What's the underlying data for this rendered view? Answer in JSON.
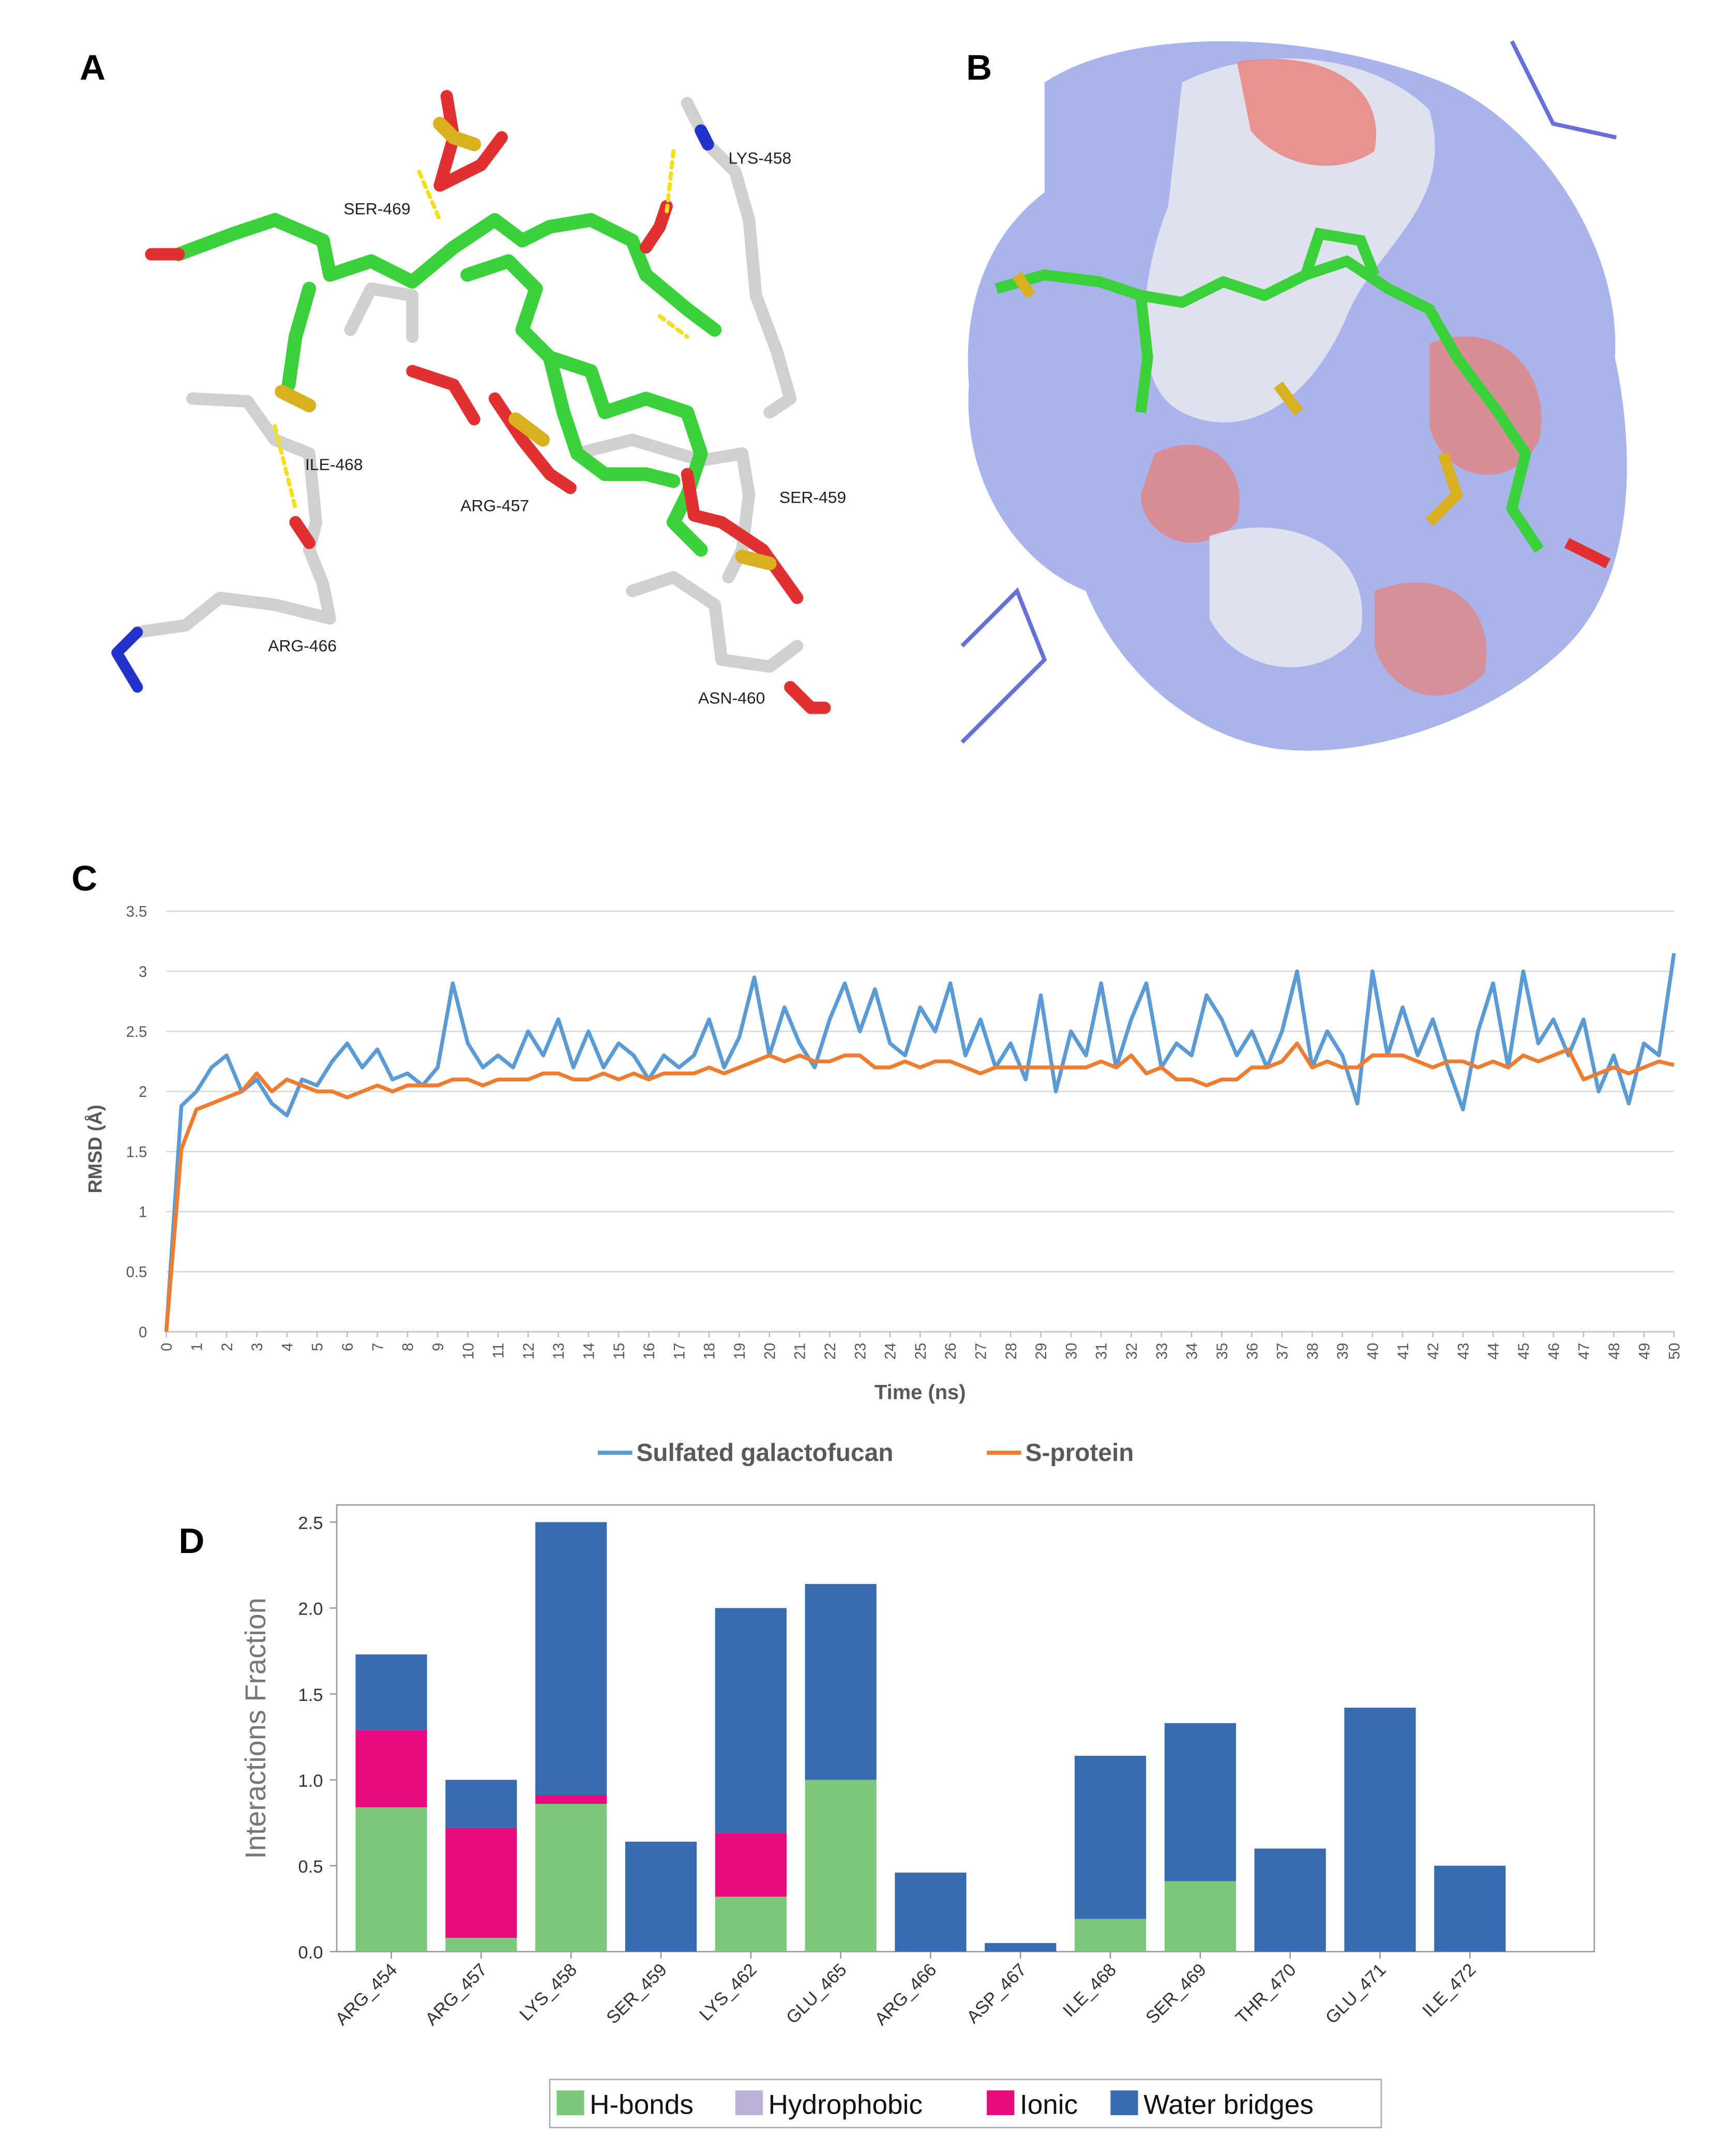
{
  "panel_labels": [
    "A",
    "B",
    "C",
    "D"
  ],
  "structure_labels": [
    "LYS-458",
    "SER-469",
    "ILE-468",
    "ARG-457",
    "SER-459",
    "ARG-466",
    "ASN-460"
  ],
  "chart_data": [
    {
      "type": "line",
      "ylabel": "RMSD (Å)",
      "xlabel": "Time (ns)",
      "xlim": [
        0,
        50
      ],
      "ylim": [
        0,
        3.5
      ],
      "xticks": [
        0,
        1,
        2,
        3,
        4,
        5,
        6,
        7,
        8,
        9,
        10,
        11,
        12,
        13,
        14,
        15,
        16,
        17,
        18,
        19,
        20,
        21,
        22,
        23,
        24,
        25,
        26,
        27,
        28,
        29,
        30,
        31,
        32,
        33,
        34,
        35,
        36,
        37,
        38,
        39,
        40,
        41,
        42,
        43,
        44,
        45,
        46,
        47,
        48,
        49,
        50
      ],
      "yticks": [
        0,
        0.5,
        1,
        1.5,
        2,
        2.5,
        3,
        3.5
      ],
      "grid": true,
      "legend": "bottom",
      "x": [
        0,
        0.5,
        1,
        1.5,
        2,
        2.5,
        3,
        3.5,
        4,
        4.5,
        5,
        5.5,
        6,
        6.5,
        7,
        7.5,
        8,
        8.5,
        9,
        9.5,
        10,
        10.5,
        11,
        11.5,
        12,
        12.5,
        13,
        13.5,
        14,
        14.5,
        15,
        15.5,
        16,
        16.5,
        17,
        17.5,
        18,
        18.5,
        19,
        19.5,
        20,
        20.5,
        21,
        21.5,
        22,
        22.5,
        23,
        23.5,
        24,
        24.5,
        25,
        25.5,
        26,
        26.5,
        27,
        27.5,
        28,
        28.5,
        29,
        29.5,
        30,
        30.5,
        31,
        31.5,
        32,
        32.5,
        33,
        33.5,
        34,
        34.5,
        35,
        35.5,
        36,
        36.5,
        37,
        37.5,
        38,
        38.5,
        39,
        39.5,
        40,
        40.5,
        41,
        41.5,
        42,
        42.5,
        43,
        43.5,
        44,
        44.5,
        45,
        45.5,
        46,
        46.5,
        47,
        47.5,
        48,
        48.5,
        49,
        49.5,
        50
      ],
      "series": [
        {
          "name": "Sulfated galactofucan",
          "color": "#5b9bd5",
          "values": [
            0,
            1.88,
            2.0,
            2.2,
            2.3,
            2.0,
            2.1,
            1.9,
            1.8,
            2.1,
            2.05,
            2.25,
            2.4,
            2.2,
            2.35,
            2.1,
            2.15,
            2.05,
            2.2,
            2.9,
            2.4,
            2.2,
            2.3,
            2.2,
            2.5,
            2.3,
            2.6,
            2.2,
            2.5,
            2.2,
            2.4,
            2.3,
            2.1,
            2.3,
            2.2,
            2.3,
            2.6,
            2.2,
            2.45,
            2.95,
            2.3,
            2.7,
            2.4,
            2.2,
            2.6,
            2.9,
            2.5,
            2.85,
            2.4,
            2.3,
            2.7,
            2.5,
            2.9,
            2.3,
            2.6,
            2.2,
            2.4,
            2.1,
            2.8,
            2.0,
            2.5,
            2.3,
            2.9,
            2.2,
            2.6,
            2.9,
            2.2,
            2.4,
            2.3,
            2.8,
            2.6,
            2.3,
            2.5,
            2.2,
            2.5,
            3.0,
            2.2,
            2.5,
            2.3,
            1.9,
            3.0,
            2.3,
            2.7,
            2.3,
            2.6,
            2.2,
            1.85,
            2.5,
            2.9,
            2.2,
            3.0,
            2.4,
            2.6,
            2.3,
            2.6,
            2.0,
            2.3,
            1.9,
            2.4,
            2.3,
            3.15
          ]
        },
        {
          "name": "S-protein",
          "color": "#ed7d31",
          "values": [
            0,
            1.52,
            1.85,
            1.9,
            1.95,
            2.0,
            2.15,
            2.0,
            2.1,
            2.05,
            2.0,
            2.0,
            1.95,
            2.0,
            2.05,
            2.0,
            2.05,
            2.05,
            2.05,
            2.1,
            2.1,
            2.05,
            2.1,
            2.1,
            2.1,
            2.15,
            2.15,
            2.1,
            2.1,
            2.15,
            2.1,
            2.15,
            2.1,
            2.15,
            2.15,
            2.15,
            2.2,
            2.15,
            2.2,
            2.25,
            2.3,
            2.25,
            2.3,
            2.25,
            2.25,
            2.3,
            2.3,
            2.2,
            2.2,
            2.25,
            2.2,
            2.25,
            2.25,
            2.2,
            2.15,
            2.2,
            2.2,
            2.2,
            2.2,
            2.2,
            2.2,
            2.2,
            2.25,
            2.2,
            2.3,
            2.15,
            2.2,
            2.1,
            2.1,
            2.05,
            2.1,
            2.1,
            2.2,
            2.2,
            2.25,
            2.4,
            2.2,
            2.25,
            2.2,
            2.2,
            2.3,
            2.3,
            2.3,
            2.25,
            2.2,
            2.25,
            2.25,
            2.2,
            2.25,
            2.2,
            2.3,
            2.25,
            2.3,
            2.35,
            2.1,
            2.15,
            2.2,
            2.15,
            2.2,
            2.25,
            2.22
          ]
        }
      ]
    },
    {
      "type": "bar",
      "stacked": true,
      "ylabel": "Interactions Fraction",
      "ylim": [
        0,
        2.6
      ],
      "yticks": [
        {
          "value": 0,
          "label": "0.0"
        },
        {
          "value": 0.5,
          "label": "0.5"
        },
        {
          "value": 1,
          "label": "1.0"
        },
        {
          "value": 1.5,
          "label": "1.5"
        },
        {
          "value": 2,
          "label": "2.0"
        },
        {
          "value": 2.5,
          "label": "2.5"
        }
      ],
      "legend": "bottom",
      "categories": [
        "ARG_454",
        "ARG_457",
        "LYS_458",
        "SER_459",
        "LYS_462",
        "GLU_465",
        "ARG_466",
        "ASP_467",
        "ILE_468",
        "SER_469",
        "THR_470",
        "GLU_471",
        "ILE_472"
      ],
      "series": [
        {
          "name": "H-bonds",
          "color": "#7cc87c",
          "values": [
            0.84,
            0.08,
            0.86,
            0,
            0.32,
            1.0,
            0,
            0,
            0.19,
            0.41,
            0,
            0,
            0
          ]
        },
        {
          "name": "Hydrophobic",
          "color": "#bdb0d9",
          "values": [
            0,
            0,
            0,
            0,
            0,
            0,
            0,
            0,
            0,
            0,
            0,
            0,
            0
          ]
        },
        {
          "name": "Ionic",
          "color": "#e8097e",
          "values": [
            0.45,
            0.64,
            0.05,
            0,
            0.37,
            0,
            0,
            0,
            0,
            0,
            0,
            0,
            0
          ]
        },
        {
          "name": "Water bridges",
          "color": "#386cb0",
          "values": [
            0.44,
            0.28,
            1.59,
            0.64,
            1.31,
            1.14,
            0.46,
            0.05,
            0.95,
            0.92,
            0.6,
            1.42,
            0.5
          ]
        }
      ]
    }
  ]
}
